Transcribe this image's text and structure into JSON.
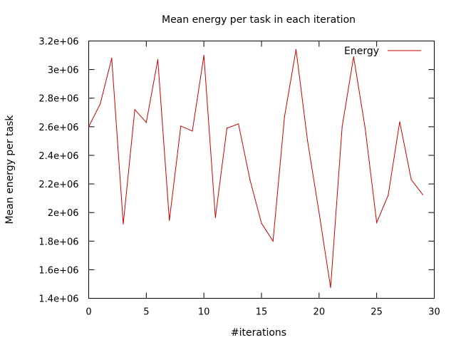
{
  "chart_data": {
    "type": "line",
    "title": "Mean energy per task in each iteration",
    "xlabel": "#iterations",
    "ylabel": "Mean energy per task",
    "xlim": [
      0,
      30
    ],
    "ylim": [
      1400000,
      3200000
    ],
    "x_ticks": [
      0,
      5,
      10,
      15,
      20,
      25,
      30
    ],
    "x_tick_labels": [
      "0",
      "5",
      "10",
      "15",
      "20",
      "25",
      "30"
    ],
    "y_ticks": [
      1400000,
      1600000,
      1800000,
      2000000,
      2200000,
      2400000,
      2600000,
      2800000,
      3000000,
      3200000
    ],
    "y_tick_labels": [
      "1.4e+06",
      "1.6e+06",
      "1.8e+06",
      "2e+06",
      "2.2e+06",
      "2.4e+06",
      "2.6e+06",
      "2.8e+06",
      "3e+06",
      "3.2e+06"
    ],
    "grid": false,
    "legend_position": "top-right",
    "x": [
      0,
      1,
      2,
      3,
      4,
      5,
      6,
      7,
      8,
      9,
      10,
      11,
      12,
      13,
      14,
      15,
      16,
      17,
      18,
      19,
      20,
      21,
      22,
      23,
      24,
      25,
      26,
      27,
      28,
      29
    ],
    "series": [
      {
        "name": "Energy",
        "color": "#cc0000",
        "values": [
          2600000,
          2760000,
          3080000,
          1920000,
          2720000,
          2630000,
          3070000,
          1945000,
          2605000,
          2570000,
          3100000,
          1965000,
          2590000,
          2620000,
          2230000,
          1925000,
          1800000,
          2670000,
          3140000,
          2500000,
          2000000,
          1475000,
          2600000,
          3090000,
          2590000,
          1930000,
          2120000,
          2635000,
          2230000,
          2125000
        ]
      }
    ]
  }
}
